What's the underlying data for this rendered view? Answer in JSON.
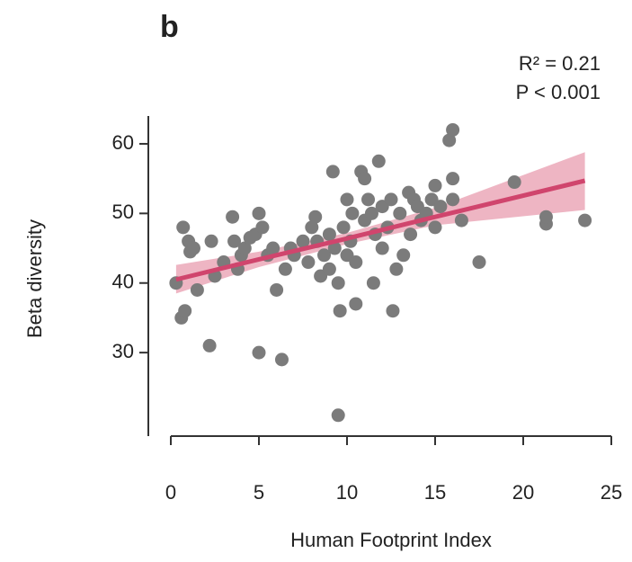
{
  "chart_data": {
    "type": "scatter",
    "title": "b",
    "annotations": [
      "R² = 0.21",
      "P < 0.001"
    ],
    "x_label": "Human Footprint Index",
    "y_label": "Beta diversity",
    "color": "#7b7b7b",
    "x": [
      0.3,
      0.6,
      0.8,
      0.7,
      1,
      1.1,
      1.3,
      1.5,
      2.2,
      2.3,
      2.5,
      3,
      3.5,
      3.6,
      3.8,
      4,
      4.2,
      4.5,
      4.8,
      5,
      5,
      5.2,
      5.5,
      5.8,
      6,
      6.3,
      6.5,
      6.8,
      7,
      7.5,
      7.8,
      8,
      8.2,
      8.3,
      8.5,
      8.7,
      9,
      9,
      9.2,
      9.3,
      9.5,
      9.5,
      9.6,
      9.8,
      10,
      10,
      10.2,
      10.3,
      10.5,
      10.5,
      10.8,
      11,
      11,
      11.2,
      11.4,
      11.5,
      11.6,
      11.8,
      12,
      12,
      12.3,
      12.5,
      12.6,
      12.8,
      13,
      13.2,
      13.5,
      13.6,
      13.8,
      14,
      14.2,
      14.5,
      14.8,
      15,
      15,
      15.3,
      15.8,
      16,
      16,
      16,
      16.5,
      17.5,
      19.5,
      21.3,
      21.3,
      23.5
    ],
    "values": [
      40,
      35,
      36,
      48,
      46,
      44.5,
      45,
      39,
      31,
      46,
      41,
      43,
      49.5,
      46,
      42,
      44,
      45,
      46.5,
      47,
      50,
      30,
      48,
      44,
      45,
      39,
      29,
      42,
      45,
      44,
      46,
      43,
      48,
      49.5,
      46,
      41,
      44,
      47,
      42,
      56,
      45,
      40,
      21,
      36,
      48,
      52,
      44,
      46,
      50,
      43,
      37,
      56,
      55,
      49,
      52,
      50,
      40,
      47,
      57.5,
      51,
      45,
      48,
      52,
      36,
      42,
      50,
      44,
      53,
      47,
      52,
      51,
      49,
      50,
      52,
      54,
      48,
      51,
      60.5,
      62,
      55,
      52,
      49,
      43,
      54.5,
      48.5,
      49.5,
      49
    ],
    "fit": {
      "color": "#d0456d",
      "band_color": "#e58ea3",
      "x": [
        0.3,
        5,
        10,
        15,
        23.5
      ],
      "values": [
        40.5,
        43.4,
        46.4,
        49.5,
        54.7
      ],
      "lower": [
        38.5,
        42.3,
        45.6,
        48.3,
        50.5
      ],
      "upper": [
        42.6,
        44.5,
        47.2,
        50.8,
        58.8
      ]
    },
    "xlim": [
      0,
      25
    ],
    "xticks": [
      0,
      5,
      10,
      15,
      20,
      25
    ],
    "ylim": [
      18,
      64
    ],
    "yticks": [
      30,
      40,
      50,
      60
    ]
  }
}
